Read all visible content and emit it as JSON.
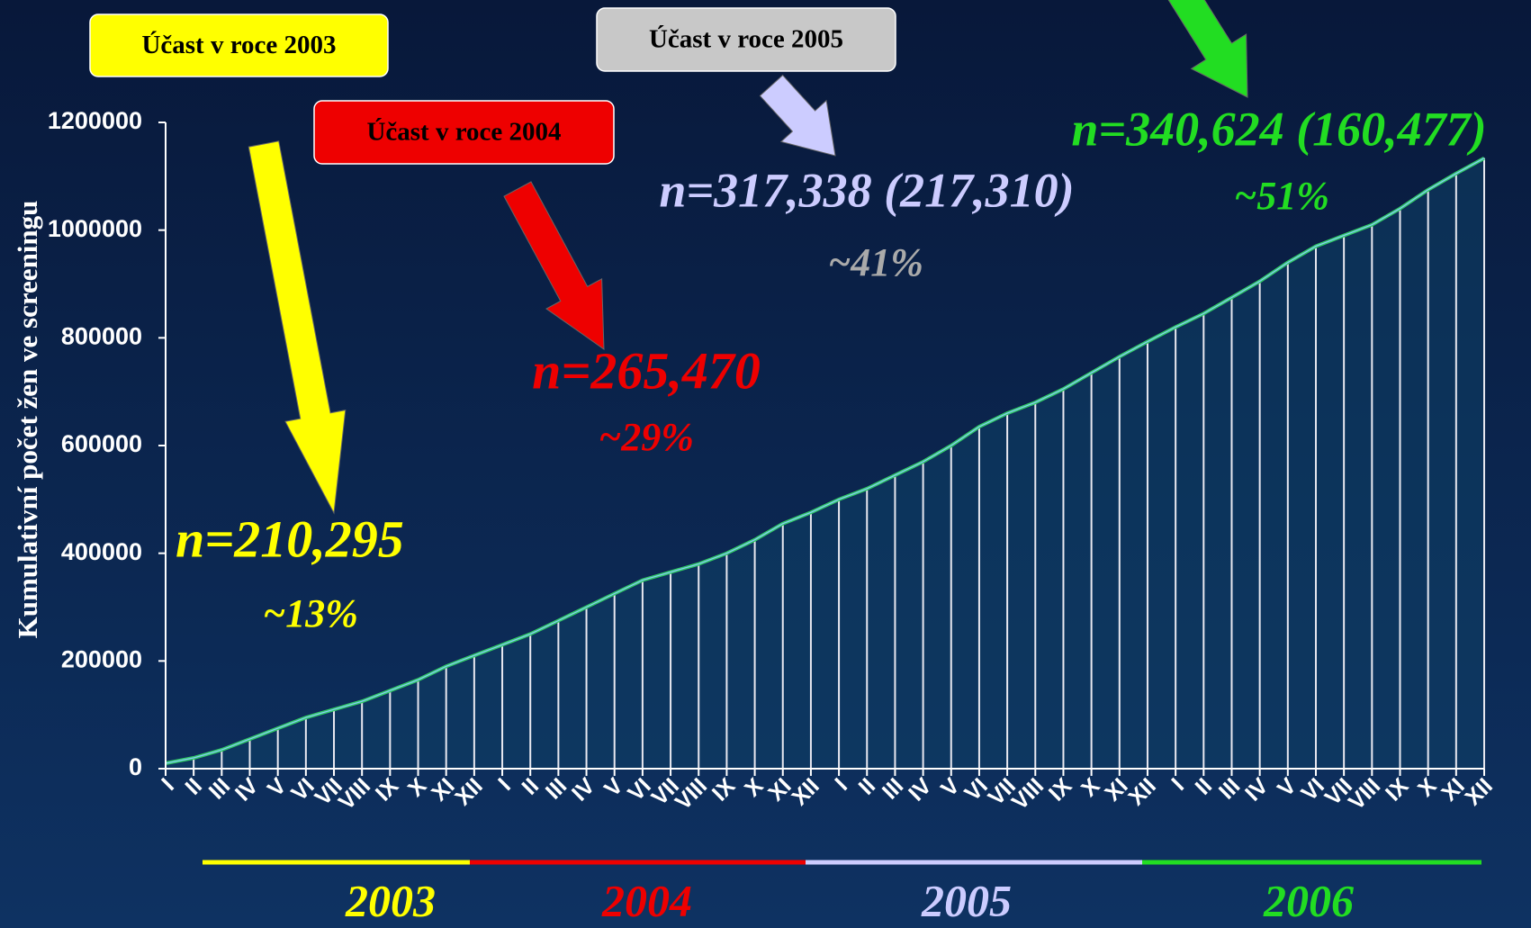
{
  "chart_data": {
    "type": "line",
    "ylabel": "Kumulativní počet žen ve screeningu",
    "categories": [
      "I",
      "II",
      "III",
      "IV",
      "V",
      "VI",
      "VII",
      "VIII",
      "IX",
      "X",
      "XI",
      "XII",
      "I",
      "II",
      "III",
      "IV",
      "V",
      "VI",
      "VII",
      "VIII",
      "IX",
      "X",
      "XI",
      "XII",
      "I",
      "II",
      "III",
      "IV",
      "V",
      "VI",
      "VII",
      "VIII",
      "IX",
      "X",
      "XI",
      "XII",
      "I",
      "II",
      "III",
      "IV",
      "V",
      "VI",
      "VII",
      "VIII",
      "IX",
      "X",
      "XI",
      "XII"
    ],
    "values": [
      10000,
      20000,
      35000,
      55000,
      75000,
      95000,
      110000,
      125000,
      145000,
      165000,
      190000,
      210295,
      230000,
      250000,
      275000,
      300000,
      325000,
      350000,
      365000,
      380000,
      400000,
      425000,
      455000,
      475765,
      500000,
      520000,
      545000,
      570000,
      600000,
      635000,
      660000,
      680000,
      705000,
      735000,
      765000,
      793103,
      820000,
      845000,
      875000,
      905000,
      940000,
      970000,
      990000,
      1010000,
      1040000,
      1075000,
      1105000,
      1133727
    ],
    "color": "#33cc66",
    "ylim": [
      0,
      1200000
    ],
    "yticks": [
      0,
      200000,
      400000,
      600000,
      800000,
      1000000,
      1200000
    ],
    "years": [
      {
        "label": "2003",
        "color": "#ffff00"
      },
      {
        "label": "2004",
        "color": "#ee0000"
      },
      {
        "label": "2005",
        "color": "#ccccff"
      },
      {
        "label": "2006",
        "color": "#22dd22"
      }
    ],
    "boxes": [
      {
        "text": "Účast v roce 2003",
        "color": "#ffff00"
      },
      {
        "text": "Účast v roce 2004",
        "color": "#ee0000"
      },
      {
        "text": "Účast v roce 2005",
        "color": "#c8c8c8"
      }
    ],
    "annotations": [
      {
        "text": "n=210,295",
        "color": "#ffff00"
      },
      {
        "text": "~13%",
        "color": "#ffff00"
      },
      {
        "text": "n=265,470",
        "color": "#ee0000"
      },
      {
        "text": "~29%",
        "color": "#ee0000"
      },
      {
        "text": "n=317,338 (217,310)",
        "color": "#ccccff"
      },
      {
        "text": "~41%",
        "color": "#aaaaaa"
      },
      {
        "text": "n=340,624 (160,477)",
        "color": "#22dd22"
      },
      {
        "text": "~51%",
        "color": "#22dd22"
      }
    ]
  }
}
